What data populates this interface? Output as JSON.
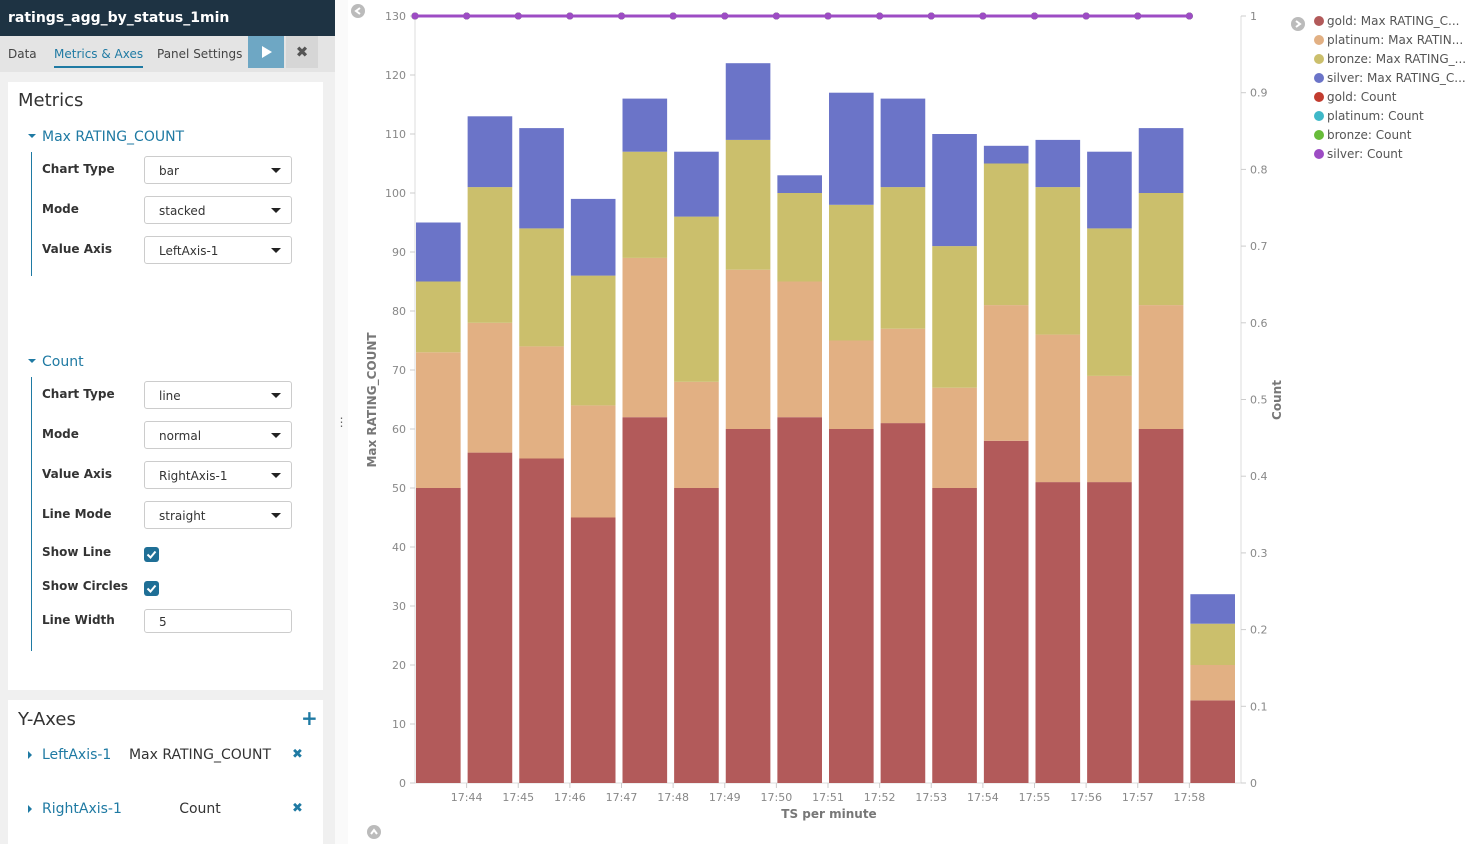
{
  "editor": {
    "title": "ratings_agg_by_status_1min",
    "tabs": [
      "Data",
      "Metrics & Axes",
      "Panel Settings"
    ],
    "metrics_heading": "Metrics",
    "metrics": [
      {
        "name": "Max RATING_COUNT",
        "selects": [
          {
            "label": "Chart Type",
            "value": "bar"
          },
          {
            "label": "Mode",
            "value": "stacked"
          },
          {
            "label": "Value Axis",
            "value": "LeftAxis-1"
          }
        ]
      },
      {
        "name": "Count",
        "selects": [
          {
            "label": "Chart Type",
            "value": "line"
          },
          {
            "label": "Mode",
            "value": "normal"
          },
          {
            "label": "Value Axis",
            "value": "RightAxis-1"
          },
          {
            "label": "Line Mode",
            "value": "straight"
          }
        ],
        "checkboxes": [
          {
            "label": "Show Line",
            "checked": true
          },
          {
            "label": "Show Circles",
            "checked": true
          }
        ],
        "inputs": [
          {
            "label": "Line Width",
            "value": "5"
          }
        ]
      }
    ],
    "yaxes_heading": "Y-Axes",
    "yaxes": [
      {
        "name": "LeftAxis-1",
        "title": "Max RATING_COUNT"
      },
      {
        "name": "RightAxis-1",
        "title": "Count"
      }
    ]
  },
  "chart_data": {
    "type": "bar",
    "x_label": "TS per minute",
    "y_label": "Max RATING_COUNT",
    "y2_label": "Count",
    "categories": [
      null,
      "17:44",
      "17:45",
      "17:46",
      "17:47",
      "17:48",
      "17:49",
      "17:50",
      "17:51",
      "17:52",
      "17:53",
      "17:54",
      "17:55",
      "17:56",
      "17:57",
      "17:58"
    ],
    "ylim": [
      0,
      130
    ],
    "yticks": [
      0,
      10,
      20,
      30,
      40,
      50,
      60,
      70,
      80,
      90,
      100,
      110,
      120,
      130
    ],
    "y2lim": [
      0,
      1
    ],
    "y2ticks": [
      0,
      0.1,
      0.2,
      0.3,
      0.4,
      0.5,
      0.6,
      0.7,
      0.8,
      0.9,
      1
    ],
    "series": [
      {
        "name": "gold: Max RATING_C...",
        "color": "#b25a5a",
        "values": [
          50,
          56,
          55,
          45,
          62,
          50,
          60,
          62,
          60,
          61,
          50,
          58,
          51,
          51,
          60,
          14
        ]
      },
      {
        "name": "platinum: Max RATIN...",
        "color": "#e2b083",
        "values": [
          23,
          22,
          19,
          19,
          27,
          18,
          27,
          23,
          15,
          16,
          17,
          23,
          25,
          18,
          21,
          6
        ]
      },
      {
        "name": "bronze: Max RATING_...",
        "color": "#cbbf6c",
        "values": [
          12,
          23,
          20,
          22,
          18,
          28,
          22,
          15,
          23,
          24,
          24,
          24,
          25,
          25,
          19,
          7
        ]
      },
      {
        "name": "silver: Max RATING_C...",
        "color": "#6b74c8",
        "values": [
          10,
          12,
          17,
          13,
          9,
          11,
          13,
          3,
          19,
          15,
          19,
          3,
          8,
          13,
          11,
          5
        ]
      },
      {
        "name": "gold: Count",
        "color": "#c23c2f",
        "type": "line",
        "axis": "y2",
        "values": [
          1,
          1,
          1,
          1,
          1,
          1,
          1,
          1,
          1,
          1,
          1,
          1,
          1,
          1,
          1,
          1
        ]
      },
      {
        "name": "platinum: Count",
        "color": "#3fb8c8",
        "type": "line",
        "axis": "y2",
        "values": [
          1,
          1,
          1,
          1,
          1,
          1,
          1,
          1,
          1,
          1,
          1,
          1,
          1,
          1,
          1,
          1
        ]
      },
      {
        "name": "bronze: Count",
        "color": "#68bc3a",
        "type": "line",
        "axis": "y2",
        "values": [
          1,
          1,
          1,
          1,
          1,
          1,
          1,
          1,
          1,
          1,
          1,
          1,
          1,
          1,
          1,
          1
        ]
      },
      {
        "name": "silver: Count",
        "color": "#9d4cc4",
        "type": "line",
        "axis": "y2",
        "values": [
          1,
          1,
          1,
          1,
          1,
          1,
          1,
          1,
          1,
          1,
          1,
          1,
          1,
          1,
          1,
          1
        ]
      }
    ]
  }
}
